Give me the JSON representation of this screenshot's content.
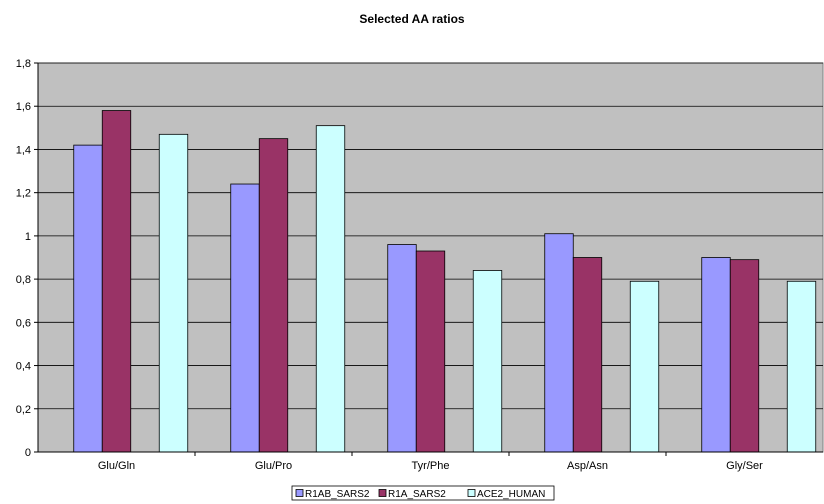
{
  "chart_data": {
    "type": "bar",
    "title": "Selected AA ratios",
    "categories": [
      "Glu/Gln",
      "Glu/Pro",
      "Tyr/Phe",
      "Asp/Asn",
      "Gly/Ser"
    ],
    "series": [
      {
        "name": "R1AB_SARS2",
        "color": "#9999ff",
        "values": [
          1.42,
          1.24,
          0.96,
          1.01,
          0.9
        ]
      },
      {
        "name": "R1A_SARS2",
        "color": "#993366",
        "values": [
          1.58,
          1.45,
          0.93,
          0.9,
          0.89
        ]
      },
      {
        "name": "ACE2_HUMAN",
        "color": "#ccffff",
        "values": [
          1.47,
          1.51,
          0.84,
          0.79,
          0.79
        ]
      }
    ],
    "ylim": [
      0,
      1.8
    ],
    "yticks": [
      "0",
      "0,2",
      "0,4",
      "0,6",
      "0,8",
      "1",
      "1,2",
      "1,4",
      "1,6",
      "1,8"
    ],
    "grid": true,
    "plot_background": "#c0c0c0",
    "legend_position": "bottom-center"
  }
}
